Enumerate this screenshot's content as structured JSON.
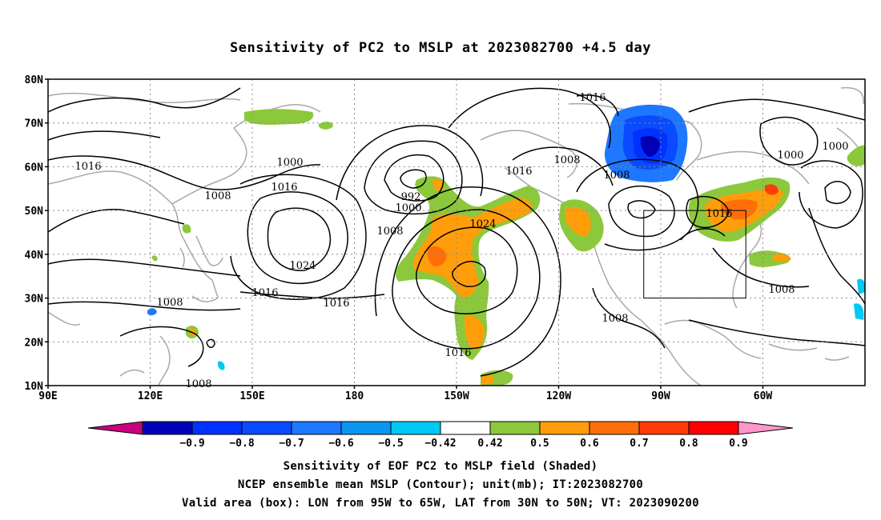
{
  "title": "Sensitivity of PC2 to MSLP at 2023082700 +4.5 day",
  "lat_labels": [
    "80N",
    "70N",
    "60N",
    "50N",
    "40N",
    "30N",
    "20N",
    "10N"
  ],
  "lon_labels": [
    "90E",
    "120E",
    "150E",
    "180",
    "150W",
    "120W",
    "90W",
    "60W"
  ],
  "contour_labels": [
    "1016",
    "1000",
    "1016",
    "1008",
    "992",
    "1000",
    "1016",
    "1008",
    "1024",
    "1024",
    "1008",
    "1016",
    "1016",
    "1008",
    "1016",
    "1008",
    "1000",
    "1000",
    "1016",
    "1008",
    "1008",
    "1016",
    "1008"
  ],
  "colorbar": {
    "ticks": [
      "-0.9",
      "-0.8",
      "-0.7",
      "-0.6",
      "-0.5",
      "-0.42",
      "0.42",
      "0.5",
      "0.6",
      "0.7",
      "0.8",
      "0.9"
    ],
    "colors": [
      "#c8007f",
      "#0000b4",
      "#0032ff",
      "#0a4bff",
      "#1e78ff",
      "#0a96f0",
      "#00c8f5",
      "#ffffff",
      "#8cc83c",
      "#ff9e0a",
      "#ff6e0a",
      "#ff3c0a",
      "#ff0000",
      "#ff96c8"
    ]
  },
  "valid_box": {
    "lon_from": "95W",
    "lon_to": "65W",
    "lat_from": "30N",
    "lat_to": "50N"
  },
  "footer": {
    "line1": "Sensitivity of EOF PC2 to MSLP field (Shaded)",
    "line2": "NCEP ensemble mean MSLP (Contour); unit(mb); IT:2023082700",
    "line3": "Valid area (box): LON from 95W to 65W, LAT from 30N to 50N; VT: 2023090200"
  }
}
